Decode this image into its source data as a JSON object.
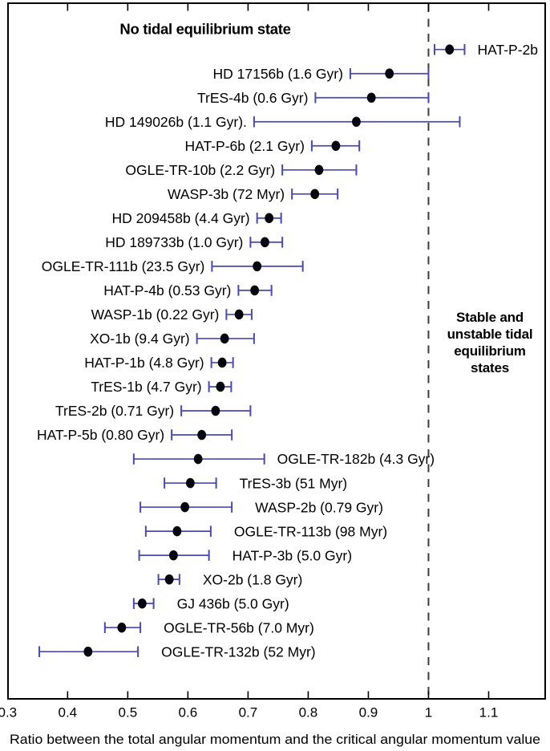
{
  "figure_background": "#ffffff",
  "chart_data": {
    "type": "scatter",
    "subtype": "horizontal-errorbar",
    "title": "",
    "xlabel": "Ratio between the total angular momentum and the critical angular momentum value",
    "ylabel": "",
    "xlim": [
      0.3,
      1.196
    ],
    "x_ticks": [
      0.3,
      0.4,
      0.5,
      0.6,
      0.7,
      0.8,
      0.9,
      1,
      1.1
    ],
    "x_tick_labels": [
      "0.3",
      "0.4",
      "0.5",
      "0.6",
      "0.7",
      "0.8",
      "0.9",
      "1",
      "1.1"
    ],
    "grid": false,
    "threshold_line": {
      "value": 1.0,
      "style": "dashed",
      "color": "#3c3c3c"
    },
    "errorbar_color": "#4848b8",
    "marker_color": "#06060f",
    "annotations": {
      "left": {
        "lines": [
          "No tidal equilibrium state"
        ],
        "bold": true
      },
      "right": {
        "lines": [
          "Stable and",
          "unstable tidal",
          "equilibrium",
          "states"
        ],
        "bold": true
      }
    },
    "planets": [
      {
        "label": "HAT-P-2b",
        "value": 1.035,
        "err_lo": 1.01,
        "err_hi": 1.06,
        "label_side": "right"
      },
      {
        "label": "HD 17156b (1.6 Gyr)",
        "value": 0.935,
        "err_lo": 0.87,
        "err_hi": 1.0,
        "label_side": "left"
      },
      {
        "label": "TrES-4b (0.6 Gyr)",
        "value": 0.905,
        "err_lo": 0.812,
        "err_hi": 1.0,
        "label_side": "left"
      },
      {
        "label": "HD 149026b (1.1 Gyr).",
        "value": 0.88,
        "err_lo": 0.71,
        "err_hi": 1.052,
        "label_side": "left"
      },
      {
        "label": "HAT-P-6b (2.1 Gyr)",
        "value": 0.846,
        "err_lo": 0.806,
        "err_hi": 0.885,
        "label_side": "left"
      },
      {
        "label": "OGLE-TR-10b (2.2 Gyr)",
        "value": 0.818,
        "err_lo": 0.757,
        "err_hi": 0.88,
        "label_side": "left"
      },
      {
        "label": "WASP-3b (72 Myr)",
        "value": 0.811,
        "err_lo": 0.773,
        "err_hi": 0.849,
        "label_side": "left"
      },
      {
        "label": "HD 209458b (4.4 Gyr)",
        "value": 0.735,
        "err_lo": 0.715,
        "err_hi": 0.755,
        "label_side": "left"
      },
      {
        "label": "HD 189733b (1.0 Gyr)",
        "value": 0.728,
        "err_lo": 0.704,
        "err_hi": 0.757,
        "label_side": "left"
      },
      {
        "label": "OGLE-TR-111b (23.5 Gyr)",
        "value": 0.715,
        "err_lo": 0.64,
        "err_hi": 0.791,
        "label_side": "left"
      },
      {
        "label": "HAT-P-4b (0.53 Gyr)",
        "value": 0.711,
        "err_lo": 0.684,
        "err_hi": 0.739,
        "label_side": "left"
      },
      {
        "label": "WASP-1b (0.22 Gyr)",
        "value": 0.685,
        "err_lo": 0.664,
        "err_hi": 0.706,
        "label_side": "left"
      },
      {
        "label": "XO-1b (9.4 Gyr)",
        "value": 0.661,
        "err_lo": 0.615,
        "err_hi": 0.71,
        "label_side": "left"
      },
      {
        "label": "HAT-P-1b (4.8 Gyr)",
        "value": 0.657,
        "err_lo": 0.639,
        "err_hi": 0.675,
        "label_side": "left"
      },
      {
        "label": "TrES-1b (4.7 Gyr)",
        "value": 0.654,
        "err_lo": 0.635,
        "err_hi": 0.672,
        "label_side": "left"
      },
      {
        "label": "TrES-2b (0.71 Gyr)",
        "value": 0.646,
        "err_lo": 0.589,
        "err_hi": 0.704,
        "label_side": "left"
      },
      {
        "label": "HAT-P-5b (0.80 Gyr)",
        "value": 0.623,
        "err_lo": 0.573,
        "err_hi": 0.673,
        "label_side": "left"
      },
      {
        "label": "OGLE-TR-182b (4.3 Gyr)",
        "value": 0.617,
        "err_lo": 0.51,
        "err_hi": 0.727,
        "label_side": "right"
      },
      {
        "label": "TrES-3b (51 Myr)",
        "value": 0.604,
        "err_lo": 0.561,
        "err_hi": 0.647,
        "label_side": "right"
      },
      {
        "label": "WASP-2b (0.79 Gyr)",
        "value": 0.595,
        "err_lo": 0.521,
        "err_hi": 0.673,
        "label_side": "right"
      },
      {
        "label": "OGLE-TR-113b (98 Myr)",
        "value": 0.582,
        "err_lo": 0.53,
        "err_hi": 0.638,
        "label_side": "right"
      },
      {
        "label": "HAT-P-3b (5.0 Gyr)",
        "value": 0.576,
        "err_lo": 0.519,
        "err_hi": 0.635,
        "label_side": "right"
      },
      {
        "label": "XO-2b (1.8 Gyr)",
        "value": 0.569,
        "err_lo": 0.551,
        "err_hi": 0.586,
        "label_side": "right"
      },
      {
        "label": "GJ 436b (5.0 Gyr)",
        "value": 0.524,
        "err_lo": 0.51,
        "err_hi": 0.543,
        "label_side": "right"
      },
      {
        "label": "OGLE-TR-56b (7.0 Myr)",
        "value": 0.49,
        "err_lo": 0.462,
        "err_hi": 0.521,
        "label_side": "right"
      },
      {
        "label": "OGLE-TR-132b (52 Myr)",
        "value": 0.434,
        "err_lo": 0.353,
        "err_hi": 0.517,
        "label_side": "right"
      }
    ]
  }
}
